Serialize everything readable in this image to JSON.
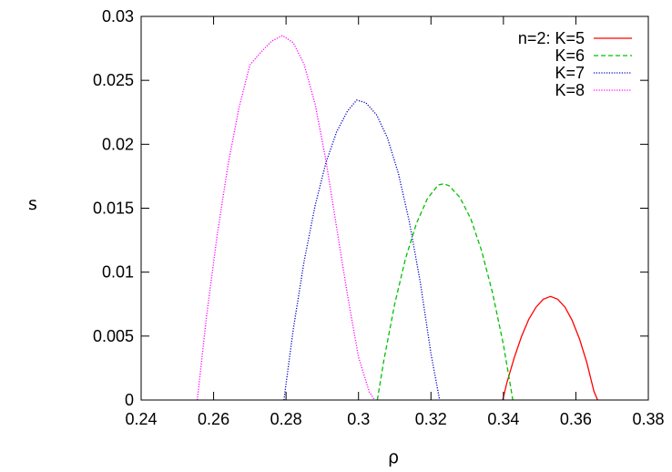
{
  "chart_data": {
    "type": "line",
    "title": "",
    "xlabel": "ρ",
    "ylabel": "s",
    "xlim": [
      0.24,
      0.38
    ],
    "ylim": [
      0,
      0.03
    ],
    "x_ticks": [
      "0.24",
      "0.26",
      "0.28",
      "0.3",
      "0.32",
      "0.34",
      "0.36",
      "0.38"
    ],
    "y_ticks": [
      "0",
      "0.005",
      "0.01",
      "0.015",
      "0.02",
      "0.025",
      "0.03"
    ],
    "grid": false,
    "legend_position": "top-right",
    "series": [
      {
        "name": "n=2: K=5",
        "color": "#ff0000",
        "dash": "solid",
        "x": [
          0.3398,
          0.341,
          0.343,
          0.345,
          0.347,
          0.349,
          0.351,
          0.353,
          0.355,
          0.357,
          0.359,
          0.361,
          0.363,
          0.365,
          0.366
        ],
        "y": [
          0.0,
          0.00139,
          0.00332,
          0.00496,
          0.00631,
          0.00726,
          0.00788,
          0.0081,
          0.00788,
          0.00726,
          0.00622,
          0.00478,
          0.00294,
          0.00068,
          0.0
        ]
      },
      {
        "name": "K=6",
        "color": "#00c000",
        "dash": "dashed",
        "x": [
          0.3052,
          0.307,
          0.31,
          0.313,
          0.316,
          0.319,
          0.322,
          0.3235,
          0.325,
          0.328,
          0.331,
          0.334,
          0.337,
          0.34,
          0.3426
        ],
        "y": [
          0.0,
          0.00312,
          0.00752,
          0.01108,
          0.01382,
          0.01574,
          0.01682,
          0.0169,
          0.01676,
          0.01584,
          0.01416,
          0.01165,
          0.00838,
          0.00432,
          0.0
        ]
      },
      {
        "name": "K=7",
        "color": "#0000c0",
        "dash": "dotted",
        "x": [
          0.2794,
          0.282,
          0.285,
          0.288,
          0.291,
          0.294,
          0.297,
          0.2995,
          0.302,
          0.305,
          0.308,
          0.311,
          0.314,
          0.317,
          0.32,
          0.3224
        ],
        "y": [
          0.0,
          0.00554,
          0.01086,
          0.01518,
          0.01855,
          0.02099,
          0.02262,
          0.02345,
          0.02325,
          0.0223,
          0.0205,
          0.01772,
          0.01399,
          0.00928,
          0.00362,
          0.0
        ]
      },
      {
        "name": "K=8",
        "color": "#ff00ff",
        "dash": "dotted",
        "x": [
          0.2555,
          0.258,
          0.261,
          0.264,
          0.267,
          0.27,
          0.273,
          0.276,
          0.279,
          0.282,
          0.285,
          0.288,
          0.291,
          0.294,
          0.297,
          0.3,
          0.303,
          0.3045
        ],
        "y": [
          0.0,
          0.00642,
          0.01295,
          0.01842,
          0.02284,
          0.0262,
          0.02718,
          0.02806,
          0.0285,
          0.02794,
          0.02625,
          0.02316,
          0.01876,
          0.01343,
          0.00812,
          0.00336,
          0.00062,
          0.0
        ]
      }
    ]
  }
}
